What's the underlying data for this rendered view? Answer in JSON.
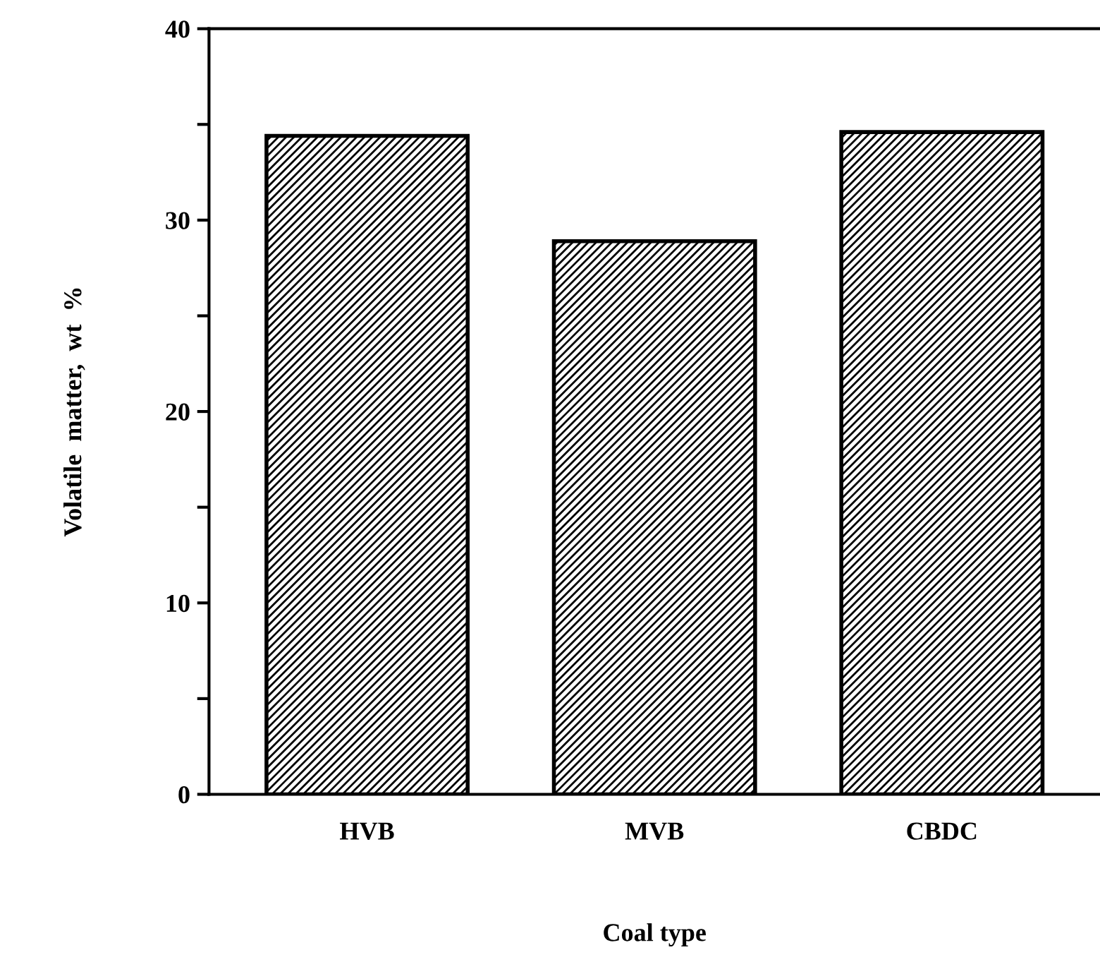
{
  "chart_data": {
    "type": "bar",
    "xlabel": "Coal type",
    "ylabel": "Volatile  matter,  wt  %",
    "categories": [
      "HVB",
      "MVB",
      "CBDC"
    ],
    "values": [
      34.4,
      28.9,
      34.6
    ],
    "color": "#000000",
    "ylim": [
      0,
      40
    ],
    "yticks": [
      0,
      {
        "value": 5,
        "label": null
      },
      10,
      {
        "value": 15,
        "label": null
      },
      20,
      {
        "value": 25,
        "label": null
      },
      30,
      {
        "value": 35,
        "label": null
      },
      40
    ],
    "grid": false
  }
}
